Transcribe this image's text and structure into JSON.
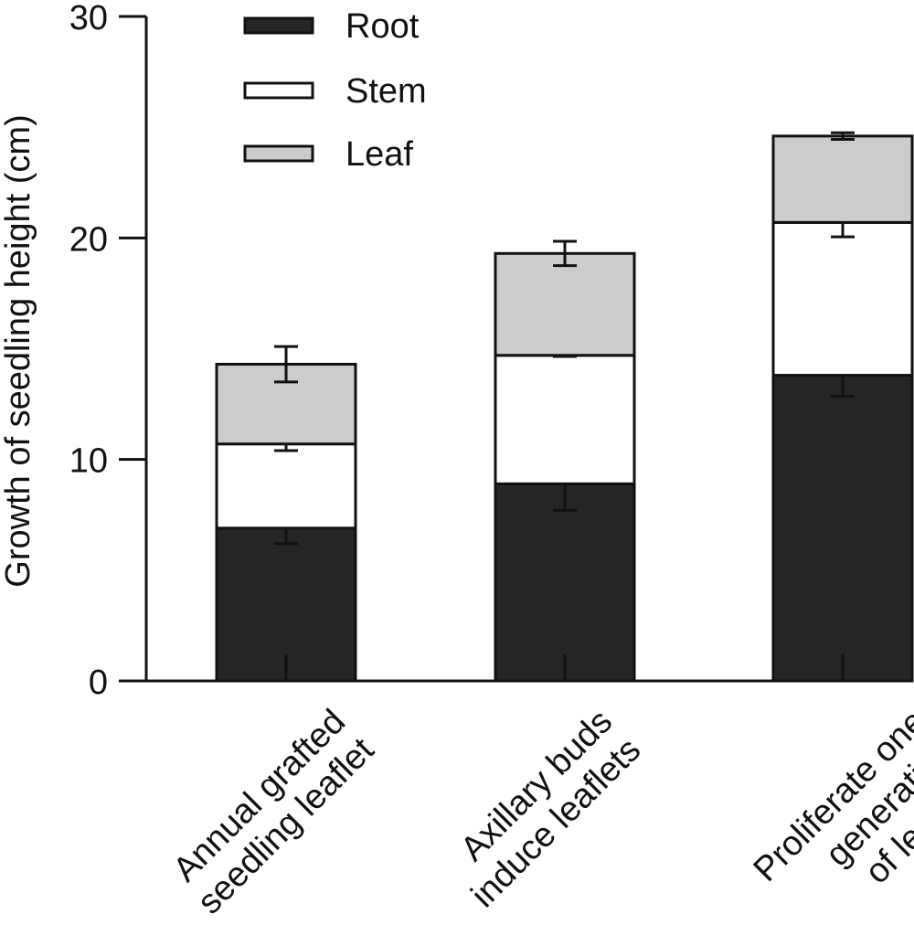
{
  "chart_data": {
    "type": "bar",
    "stacked": true,
    "title": "",
    "xlabel": "",
    "ylabel": "Growth of seedling height (cm)",
    "ylim": [
      0,
      30
    ],
    "yticks": [
      "0",
      "10",
      "20",
      "30"
    ],
    "grid": false,
    "legend_position": "top-left",
    "categories": [
      [
        "Annual grafted",
        "seedling leaflet"
      ],
      [
        "Axillary buds",
        "induce leaflets"
      ],
      [
        "Proliferate one",
        "generation",
        "of leaflets"
      ]
    ],
    "series": [
      {
        "name": "Root",
        "color": "#262626",
        "values": [
          6.9,
          8.9,
          13.8
        ],
        "errors": [
          0.7,
          1.2,
          0.95
        ]
      },
      {
        "name": "Stem",
        "color": "#ffffff",
        "values": [
          3.8,
          5.8,
          6.9
        ],
        "errors": [
          0.3,
          0.05,
          0.65
        ]
      },
      {
        "name": "Leaf",
        "color": "#cccccc",
        "values": [
          3.6,
          4.6,
          3.9
        ],
        "errors": [
          0.8,
          0.55,
          0.15
        ]
      }
    ]
  }
}
